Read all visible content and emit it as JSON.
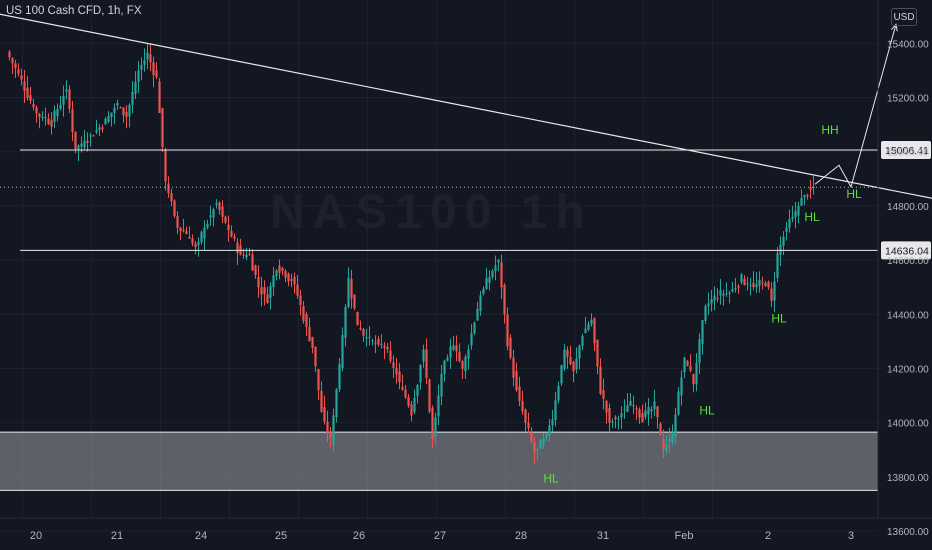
{
  "header": {
    "symbol_title": "US 100 Cash CFD, 1h, FX",
    "currency": "USD"
  },
  "watermark": "NAS100 1h",
  "colors": {
    "background": "#131722",
    "grid": "#1e2230",
    "up_candle": "#26a69a",
    "down_candle": "#ef5350",
    "annotation": "#5fdf3a",
    "level_line": "#e8e8e8",
    "support_zone": "#9a9ca3",
    "price_marker": "#b0b3bb"
  },
  "chart_data": {
    "type": "candlestick",
    "timeframe": "1h",
    "x_axis": {
      "ticks": [
        "20",
        "21",
        "24",
        "25",
        "26",
        "27",
        "28",
        "31",
        "Feb",
        "2",
        "3"
      ]
    },
    "y_axis": {
      "ticks": [
        13600,
        13800,
        14000,
        14200,
        14400,
        14600,
        14800,
        15000,
        15200,
        15400
      ],
      "range": [
        13530,
        15560
      ],
      "position": "right"
    },
    "path": [
      [
        0,
        15370
      ],
      [
        5,
        15260
      ],
      [
        10,
        15140
      ],
      [
        15,
        15110
      ],
      [
        20,
        15230
      ],
      [
        23,
        15010
      ],
      [
        28,
        15060
      ],
      [
        33,
        15110
      ],
      [
        37,
        15180
      ],
      [
        40,
        15130
      ],
      [
        44,
        15300
      ],
      [
        47,
        15360
      ],
      [
        50,
        15270
      ],
      [
        53,
        14890
      ],
      [
        57,
        14720
      ],
      [
        60,
        14700
      ],
      [
        63,
        14640
      ],
      [
        66,
        14720
      ],
      [
        70,
        14810
      ],
      [
        74,
        14710
      ],
      [
        78,
        14620
      ],
      [
        81,
        14620
      ],
      [
        84,
        14500
      ],
      [
        87,
        14460
      ],
      [
        90,
        14580
      ],
      [
        93,
        14550
      ],
      [
        96,
        14510
      ],
      [
        99,
        14390
      ],
      [
        102,
        14280
      ],
      [
        105,
        14040
      ],
      [
        108,
        13930
      ],
      [
        111,
        14220
      ],
      [
        114,
        14530
      ],
      [
        117,
        14360
      ],
      [
        121,
        14300
      ],
      [
        126,
        14280
      ],
      [
        131,
        14150
      ],
      [
        135,
        14040
      ],
      [
        139,
        14270
      ],
      [
        142,
        13940
      ],
      [
        145,
        14180
      ],
      [
        149,
        14300
      ],
      [
        152,
        14190
      ],
      [
        155,
        14330
      ],
      [
        158,
        14470
      ],
      [
        161,
        14540
      ],
      [
        164,
        14600
      ],
      [
        167,
        14300
      ],
      [
        170,
        14120
      ],
      [
        173,
        14000
      ],
      [
        176,
        13890
      ],
      [
        179,
        13930
      ],
      [
        182,
        14020
      ],
      [
        186,
        14270
      ],
      [
        189,
        14190
      ],
      [
        192,
        14330
      ],
      [
        195,
        14380
      ],
      [
        198,
        14120
      ],
      [
        201,
        14000
      ],
      [
        204,
        14020
      ],
      [
        208,
        14080
      ],
      [
        212,
        14020
      ],
      [
        216,
        14060
      ],
      [
        219,
        13900
      ],
      [
        222,
        13960
      ],
      [
        226,
        14240
      ],
      [
        229,
        14150
      ],
      [
        233,
        14430
      ],
      [
        237,
        14470
      ],
      [
        241,
        14480
      ],
      [
        245,
        14530
      ],
      [
        249,
        14500
      ],
      [
        253,
        14520
      ],
      [
        255,
        14450
      ],
      [
        257,
        14620
      ],
      [
        260,
        14720
      ],
      [
        263,
        14780
      ],
      [
        266,
        14840
      ],
      [
        269,
        14870
      ]
    ],
    "candles_per_day": 23,
    "levels": [
      15006.41,
      14636.04
    ],
    "support_zone": [
      13750,
      13965
    ],
    "current_price_line": 14869,
    "trendline": [
      [
        -13,
        15530
      ],
      [
        314,
        14815
      ]
    ],
    "projection": [
      [
        269,
        14880
      ],
      [
        277,
        14950
      ],
      [
        281,
        14870
      ],
      [
        296,
        15470
      ]
    ],
    "annotations": [
      {
        "text": "HH",
        "x": 274,
        "y": 15065
      },
      {
        "text": "HL",
        "x": 282,
        "y": 14830
      },
      {
        "text": "HL",
        "x": 268,
        "y": 14745
      },
      {
        "text": "HL",
        "x": 257,
        "y": 14370
      },
      {
        "text": "HL",
        "x": 233,
        "y": 14030
      },
      {
        "text": "HL",
        "x": 181,
        "y": 13780
      }
    ]
  }
}
